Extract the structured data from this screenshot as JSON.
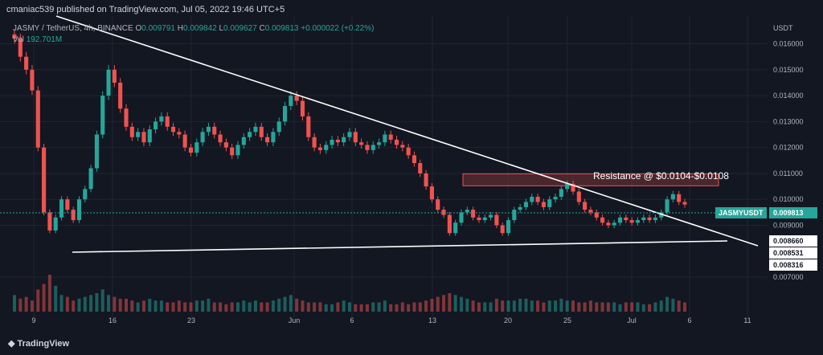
{
  "header": {
    "publisher": "cmaniac539 published on TradingView.com, Jul 05, 2022 19:46 UTC+5",
    "symbol_line": "JASMY / TetherUS, 4h, BINANCE",
    "ohlc": {
      "o_label": "O",
      "o": "0.009791",
      "h_label": "H",
      "h": "0.009842",
      "l_label": "L",
      "l": "0.009627",
      "c_label": "C",
      "c": "0.009813",
      "chg": "+0.000022 (+0.22%)"
    },
    "vol_label": "Vol",
    "vol_value": "192.701M",
    "footer_brand": "TradingView"
  },
  "chart_data": {
    "type": "candlestick",
    "yaxis_unit": "USDT",
    "y_ticks": [
      "0.016000",
      "0.015000",
      "0.014000",
      "0.013000",
      "0.012000",
      "0.011000",
      "0.010000",
      "0.009000",
      "0.007000"
    ],
    "x_ticks": [
      "9",
      "16",
      "23",
      "Jun",
      "6",
      "13",
      "20",
      "25",
      "Jul",
      "6",
      "11"
    ],
    "price_labels": [
      {
        "text": "JASMYUSDT",
        "value": "0.009813",
        "color": "#26a69a"
      },
      {
        "text": "",
        "value": "0.008660",
        "color": "#ffffff"
      },
      {
        "text": "",
        "value": "0.008531",
        "color": "#ffffff"
      },
      {
        "text": "",
        "value": "0.008316",
        "color": "#ffffff"
      }
    ],
    "annotation": "Resistance @ $0.0104-$0.0108",
    "resistance_zone": {
      "low": 0.0104,
      "high": 0.0108
    },
    "descending_trendline": {
      "from": {
        "x": "May 10",
        "y": 0.0168
      },
      "to": {
        "x": "Jul 9",
        "y": 0.0086
      }
    },
    "support_trendline": {
      "from": {
        "x": "May 12",
        "y": 0.00845
      },
      "to": {
        "x": "Jul 8",
        "y": 0.00862
      }
    },
    "close_series": [
      0.0162,
      0.0155,
      0.015,
      0.0142,
      0.012,
      0.0095,
      0.0088,
      0.0093,
      0.01,
      0.0096,
      0.0092,
      0.01,
      0.0104,
      0.0112,
      0.0125,
      0.014,
      0.015,
      0.0145,
      0.0135,
      0.0128,
      0.0124,
      0.0126,
      0.0122,
      0.0127,
      0.013,
      0.0132,
      0.0128,
      0.0126,
      0.0125,
      0.012,
      0.0118,
      0.0122,
      0.0126,
      0.0128,
      0.0125,
      0.0122,
      0.012,
      0.0117,
      0.0121,
      0.0124,
      0.0126,
      0.0128,
      0.0124,
      0.0122,
      0.0126,
      0.013,
      0.0136,
      0.014,
      0.0138,
      0.0132,
      0.0124,
      0.012,
      0.0119,
      0.0121,
      0.0123,
      0.0122,
      0.0124,
      0.0126,
      0.0122,
      0.0121,
      0.0119,
      0.0121,
      0.0122,
      0.0125,
      0.0123,
      0.0121,
      0.012,
      0.0117,
      0.0114,
      0.011,
      0.0105,
      0.01,
      0.0096,
      0.0094,
      0.0087,
      0.0091,
      0.0095,
      0.0096,
      0.0093,
      0.0092,
      0.0093,
      0.0094,
      0.009,
      0.0087,
      0.0092,
      0.0096,
      0.0097,
      0.0099,
      0.0101,
      0.0099,
      0.0097,
      0.01,
      0.0101,
      0.0104,
      0.0106,
      0.0103,
      0.0099,
      0.0096,
      0.0095,
      0.0093,
      0.0091,
      0.009,
      0.0091,
      0.0093,
      0.0092,
      0.0091,
      0.0092,
      0.0093,
      0.0092,
      0.0093,
      0.0095,
      0.01,
      0.0102,
      0.0099,
      0.0098
    ],
    "volume": [
      9,
      7,
      8,
      6,
      12,
      15,
      20,
      14,
      9,
      8,
      6,
      7,
      8,
      9,
      10,
      12,
      9,
      8,
      7,
      7,
      6,
      5,
      6,
      7,
      6,
      6,
      5,
      5,
      6,
      5,
      5,
      6,
      6,
      7,
      5,
      5,
      4,
      5,
      5,
      6,
      5,
      6,
      5,
      5,
      6,
      7,
      8,
      9,
      7,
      6,
      5,
      5,
      5,
      4,
      4,
      5,
      6,
      5,
      4,
      4,
      4,
      5,
      5,
      6,
      4,
      4,
      5,
      4,
      5,
      5,
      6,
      7,
      8,
      9,
      10,
      9,
      8,
      7,
      6,
      5,
      5,
      5,
      7,
      6,
      6,
      6,
      7,
      7,
      6,
      6,
      5,
      6,
      6,
      7,
      6,
      6,
      5,
      5,
      6,
      5,
      5,
      5,
      5,
      4,
      5,
      5,
      5,
      4,
      4,
      5,
      6,
      8,
      7,
      6,
      5
    ],
    "ylim": [
      0.0066,
      0.0172
    ],
    "grid": true
  }
}
